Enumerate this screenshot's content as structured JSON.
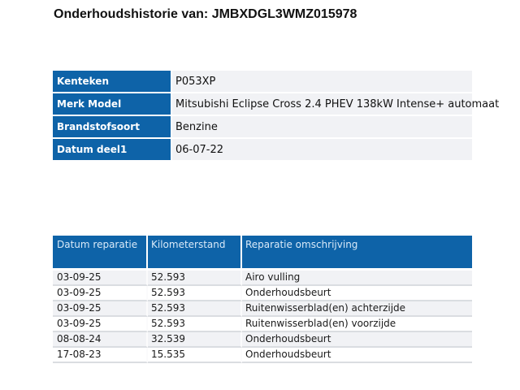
{
  "title": "Onderhoudshistorie van: JMBXDGL3WMZ015978",
  "colors": {
    "header_blue": "#0E63A8",
    "header_text_light": "#D8E9F8",
    "row_alt_gray": "#F1F2F5"
  },
  "vehicle_info": {
    "rows": [
      {
        "label": "Kenteken",
        "value": "P053XP"
      },
      {
        "label": "Merk Model",
        "value": "Mitsubishi Eclipse Cross 2.4 PHEV 138kW Intense+ automaat"
      },
      {
        "label": "Brandstofsoort",
        "value": "Benzine"
      },
      {
        "label": "Datum deel1",
        "value": "06-07-22"
      }
    ]
  },
  "repairs": {
    "headers": [
      "Datum reparatie",
      "Kilometerstand",
      "Reparatie omschrijving"
    ],
    "rows": [
      [
        "03-09-25",
        "52.593",
        "Airo vulling"
      ],
      [
        "03-09-25",
        "52.593",
        "Onderhoudsbeurt"
      ],
      [
        "03-09-25",
        "52.593",
        "Ruitenwisserblad(en) achterzijde"
      ],
      [
        "03-09-25",
        "52.593",
        "Ruitenwisserblad(en) voorzijde"
      ],
      [
        "08-08-24",
        "32.539",
        "Onderhoudsbeurt"
      ],
      [
        "17-08-23",
        "15.535",
        "Onderhoudsbeurt"
      ]
    ]
  }
}
